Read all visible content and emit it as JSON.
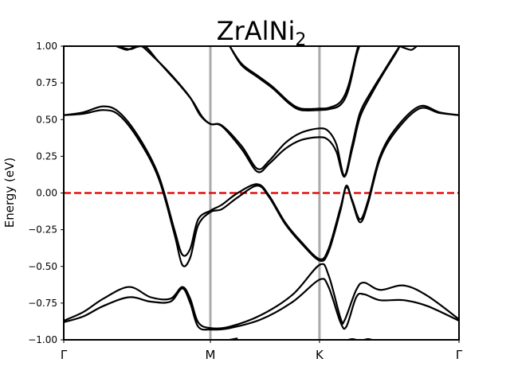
{
  "chart_data": {
    "type": "line",
    "title": "ZrAlNi",
    "title_subscript": "2",
    "xlabel": "",
    "ylabel": "Energy (eV)",
    "xlim": [
      0,
      1
    ],
    "ylim": [
      -1.0,
      1.0
    ],
    "y_ticks": [
      {
        "value": -1.0,
        "label": "−1.00"
      },
      {
        "value": -0.75,
        "label": "−0.75"
      },
      {
        "value": -0.5,
        "label": "−0.50"
      },
      {
        "value": -0.25,
        "label": "−0.25"
      },
      {
        "value": 0.0,
        "label": "0.00"
      },
      {
        "value": 0.25,
        "label": "0.25"
      },
      {
        "value": 0.5,
        "label": "0.50"
      },
      {
        "value": 0.75,
        "label": "0.75"
      },
      {
        "value": 1.0,
        "label": "1.00"
      }
    ],
    "k_points": [
      {
        "label": "Γ",
        "x": 0.0
      },
      {
        "label": "M",
        "x": 0.371
      },
      {
        "label": "K",
        "x": 0.647
      },
      {
        "label": "Γ",
        "x": 1.0
      }
    ],
    "fermi_level": {
      "y": 0.0,
      "color": "#e01010",
      "style": "dashed"
    },
    "kpoint_line_color": "#aaaaaa",
    "band_color": "#000000",
    "series": [
      {
        "x": [
          0.133,
          0.145,
          0.16,
          0.175,
          0.185
        ],
        "y": [
          1.0,
          0.98,
          0.97,
          0.98,
          1.0
        ]
      },
      {
        "x": [
          0.14,
          0.155,
          0.17,
          0.185,
          0.195
        ],
        "y": [
          1.0,
          0.98,
          0.975,
          0.99,
          1.0
        ]
      },
      {
        "x": [
          0.85,
          0.865,
          0.88,
          0.893
        ],
        "y": [
          1.0,
          0.98,
          0.975,
          1.0
        ]
      },
      {
        "x": [
          0.185,
          0.2,
          0.23,
          0.26,
          0.29,
          0.32,
          0.35,
          0.371,
          0.4,
          0.44,
          0.48,
          0.52,
          0.56,
          0.6,
          0.647,
          0.67,
          0.7,
          0.72,
          0.74,
          0.755,
          0.765
        ],
        "y": [
          1.0,
          0.99,
          0.92,
          0.84,
          0.77,
          0.7,
          0.61,
          0.58,
          0.47,
          0.31,
          0.2,
          0.13,
          0.07,
          0.04,
          0.035,
          0.03,
          0.05,
          0.1,
          0.4,
          0.78,
          1.0
        ]
      },
      {
        "x": [
          0.185,
          0.2,
          0.23,
          0.26,
          0.29,
          0.32,
          0.35,
          0.371,
          0.4,
          0.44,
          0.48,
          0.52,
          0.56,
          0.6,
          0.647,
          0.67,
          0.7,
          0.72,
          0.74,
          0.755,
          0.765
        ],
        "y": [
          1.0,
          0.99,
          0.92,
          0.84,
          0.77,
          0.7,
          0.61,
          0.58,
          0.47,
          0.31,
          0.2,
          0.13,
          0.07,
          0.04,
          0.035,
          0.03,
          0.05,
          0.1,
          0.4,
          0.78,
          1.0
        ]
      }
    ],
    "bands": [
      {
        "name": "upper-1",
        "points": [
          [
            0.133,
            1.0
          ],
          [
            0.147,
            0.985
          ],
          [
            0.16,
            0.975
          ],
          [
            0.175,
            0.99
          ],
          [
            0.185,
            1.0
          ]
        ]
      },
      {
        "name": "upper-2",
        "points": [
          [
            0.14,
            1.0
          ],
          [
            0.155,
            0.985
          ],
          [
            0.17,
            0.98
          ],
          [
            0.185,
            0.995
          ],
          [
            0.195,
            1.0
          ]
        ]
      },
      {
        "name": "upper-3",
        "points": [
          [
            0.85,
            1.0
          ],
          [
            0.865,
            0.985
          ],
          [
            0.88,
            0.975
          ],
          [
            0.893,
            1.0
          ]
        ]
      },
      {
        "name": "cond-a",
        "points": [
          [
            0.185,
            1.0
          ],
          [
            0.2,
            0.995
          ],
          [
            0.23,
            0.92
          ],
          [
            0.26,
            0.84
          ],
          [
            0.29,
            0.75
          ],
          [
            0.32,
            0.65
          ],
          [
            0.345,
            0.53
          ],
          [
            0.371,
            0.47
          ],
          [
            0.4,
            0.46
          ],
          [
            0.45,
            0.32
          ],
          [
            0.49,
            0.165
          ],
          [
            0.52,
            0.22
          ],
          [
            0.56,
            0.34
          ],
          [
            0.6,
            0.41
          ],
          [
            0.647,
            0.44
          ],
          [
            0.67,
            0.42
          ],
          [
            0.69,
            0.33
          ],
          [
            0.71,
            0.12
          ],
          [
            0.73,
            0.33
          ],
          [
            0.75,
            0.55
          ],
          [
            0.78,
            0.7
          ],
          [
            0.81,
            0.83
          ],
          [
            0.84,
            0.96
          ],
          [
            0.85,
            1.0
          ]
        ]
      },
      {
        "name": "cond-b",
        "points": [
          [
            0.195,
            1.0
          ],
          [
            0.21,
            0.99
          ],
          [
            0.235,
            0.91
          ],
          [
            0.265,
            0.82
          ],
          [
            0.295,
            0.73
          ],
          [
            0.325,
            0.63
          ],
          [
            0.35,
            0.52
          ],
          [
            0.371,
            0.47
          ],
          [
            0.4,
            0.455
          ],
          [
            0.45,
            0.3
          ],
          [
            0.49,
            0.145
          ],
          [
            0.52,
            0.2
          ],
          [
            0.56,
            0.3
          ],
          [
            0.6,
            0.36
          ],
          [
            0.647,
            0.38
          ],
          [
            0.67,
            0.36
          ],
          [
            0.69,
            0.28
          ],
          [
            0.71,
            0.11
          ],
          [
            0.73,
            0.3
          ],
          [
            0.75,
            0.52
          ],
          [
            0.78,
            0.68
          ],
          [
            0.81,
            0.82
          ],
          [
            0.84,
            0.95
          ],
          [
            0.85,
            1.0
          ]
        ]
      },
      {
        "name": "cond-c",
        "points": [
          [
            0.42,
            1.0
          ],
          [
            0.45,
            0.88
          ],
          [
            0.49,
            0.8
          ],
          [
            0.53,
            0.72
          ],
          [
            0.57,
            0.62
          ],
          [
            0.6,
            0.575
          ],
          [
            0.647,
            0.575
          ],
          [
            0.67,
            0.58
          ],
          [
            0.7,
            0.62
          ],
          [
            0.72,
            0.73
          ],
          [
            0.74,
            0.95
          ],
          [
            0.745,
            1.0
          ]
        ]
      },
      {
        "name": "cond-d",
        "points": [
          [
            0.42,
            1.0
          ],
          [
            0.45,
            0.87
          ],
          [
            0.49,
            0.79
          ],
          [
            0.53,
            0.71
          ],
          [
            0.57,
            0.61
          ],
          [
            0.6,
            0.565
          ],
          [
            0.647,
            0.565
          ],
          [
            0.67,
            0.57
          ],
          [
            0.7,
            0.6
          ],
          [
            0.72,
            0.7
          ],
          [
            0.74,
            0.93
          ],
          [
            0.748,
            1.0
          ]
        ]
      },
      {
        "name": "gamma-a",
        "points": [
          [
            0.0,
            0.53
          ],
          [
            0.05,
            0.55
          ],
          [
            0.1,
            0.59
          ],
          [
            0.14,
            0.55
          ],
          [
            0.19,
            0.38
          ],
          [
            0.24,
            0.12
          ],
          [
            0.28,
            -0.25
          ],
          [
            0.3,
            -0.42
          ],
          [
            0.32,
            -0.38
          ],
          [
            0.34,
            -0.18
          ],
          [
            0.371,
            -0.12
          ],
          [
            0.4,
            -0.08
          ],
          [
            0.44,
            0.0
          ],
          [
            0.49,
            0.06
          ],
          [
            0.52,
            -0.02
          ],
          [
            0.56,
            -0.2
          ],
          [
            0.6,
            -0.33
          ],
          [
            0.647,
            -0.45
          ],
          [
            0.67,
            -0.38
          ],
          [
            0.7,
            -0.1
          ],
          [
            0.715,
            0.04
          ],
          [
            0.73,
            -0.05
          ],
          [
            0.75,
            -0.18
          ],
          [
            0.77,
            -0.05
          ],
          [
            0.8,
            0.25
          ],
          [
            0.84,
            0.44
          ],
          [
            0.9,
            0.59
          ],
          [
            0.95,
            0.55
          ],
          [
            1.0,
            0.53
          ]
        ]
      },
      {
        "name": "gamma-b",
        "points": [
          [
            0.0,
            0.53
          ],
          [
            0.05,
            0.54
          ],
          [
            0.1,
            0.565
          ],
          [
            0.14,
            0.53
          ],
          [
            0.19,
            0.36
          ],
          [
            0.24,
            0.1
          ],
          [
            0.28,
            -0.28
          ],
          [
            0.3,
            -0.49
          ],
          [
            0.32,
            -0.44
          ],
          [
            0.34,
            -0.22
          ],
          [
            0.371,
            -0.13
          ],
          [
            0.4,
            -0.11
          ],
          [
            0.44,
            -0.03
          ],
          [
            0.49,
            0.05
          ],
          [
            0.52,
            -0.03
          ],
          [
            0.56,
            -0.21
          ],
          [
            0.6,
            -0.34
          ],
          [
            0.647,
            -0.46
          ],
          [
            0.67,
            -0.4
          ],
          [
            0.7,
            -0.12
          ],
          [
            0.715,
            0.05
          ],
          [
            0.73,
            -0.06
          ],
          [
            0.75,
            -0.2
          ],
          [
            0.77,
            -0.07
          ],
          [
            0.8,
            0.23
          ],
          [
            0.84,
            0.42
          ],
          [
            0.9,
            0.575
          ],
          [
            0.95,
            0.545
          ],
          [
            1.0,
            0.53
          ]
        ]
      },
      {
        "name": "valence-a",
        "points": [
          [
            0.0,
            -0.87
          ],
          [
            0.05,
            -0.81
          ],
          [
            0.1,
            -0.72
          ],
          [
            0.165,
            -0.64
          ],
          [
            0.22,
            -0.71
          ],
          [
            0.27,
            -0.72
          ],
          [
            0.3,
            -0.64
          ],
          [
            0.32,
            -0.72
          ],
          [
            0.34,
            -0.88
          ],
          [
            0.371,
            -0.92
          ],
          [
            0.42,
            -0.91
          ],
          [
            0.5,
            -0.83
          ],
          [
            0.58,
            -0.69
          ],
          [
            0.647,
            -0.49
          ],
          [
            0.67,
            -0.56
          ],
          [
            0.7,
            -0.85
          ],
          [
            0.71,
            -0.87
          ],
          [
            0.74,
            -0.66
          ],
          [
            0.76,
            -0.61
          ],
          [
            0.8,
            -0.66
          ],
          [
            0.86,
            -0.63
          ],
          [
            0.92,
            -0.7
          ],
          [
            1.0,
            -0.86
          ]
        ]
      },
      {
        "name": "valence-b",
        "points": [
          [
            0.0,
            -0.88
          ],
          [
            0.05,
            -0.84
          ],
          [
            0.1,
            -0.77
          ],
          [
            0.165,
            -0.71
          ],
          [
            0.22,
            -0.74
          ],
          [
            0.27,
            -0.74
          ],
          [
            0.3,
            -0.65
          ],
          [
            0.32,
            -0.75
          ],
          [
            0.34,
            -0.91
          ],
          [
            0.371,
            -0.93
          ],
          [
            0.42,
            -0.92
          ],
          [
            0.5,
            -0.86
          ],
          [
            0.58,
            -0.74
          ],
          [
            0.647,
            -0.59
          ],
          [
            0.67,
            -0.64
          ],
          [
            0.7,
            -0.88
          ],
          [
            0.715,
            -0.91
          ],
          [
            0.74,
            -0.71
          ],
          [
            0.76,
            -0.69
          ],
          [
            0.8,
            -0.73
          ],
          [
            0.86,
            -0.73
          ],
          [
            0.92,
            -0.77
          ],
          [
            1.0,
            -0.87
          ]
        ]
      },
      {
        "name": "bottom-1",
        "points": [
          [
            0.42,
            -1.0
          ],
          [
            0.43,
            -0.995
          ],
          [
            0.44,
            -0.99
          ]
        ]
      },
      {
        "name": "bottom-2",
        "points": [
          [
            0.72,
            -1.0
          ],
          [
            0.73,
            -0.995
          ],
          [
            0.74,
            -1.0
          ]
        ]
      },
      {
        "name": "bottom-3",
        "points": [
          [
            0.76,
            -1.0
          ],
          [
            0.77,
            -0.995
          ],
          [
            0.78,
            -1.0
          ]
        ]
      }
    ]
  }
}
